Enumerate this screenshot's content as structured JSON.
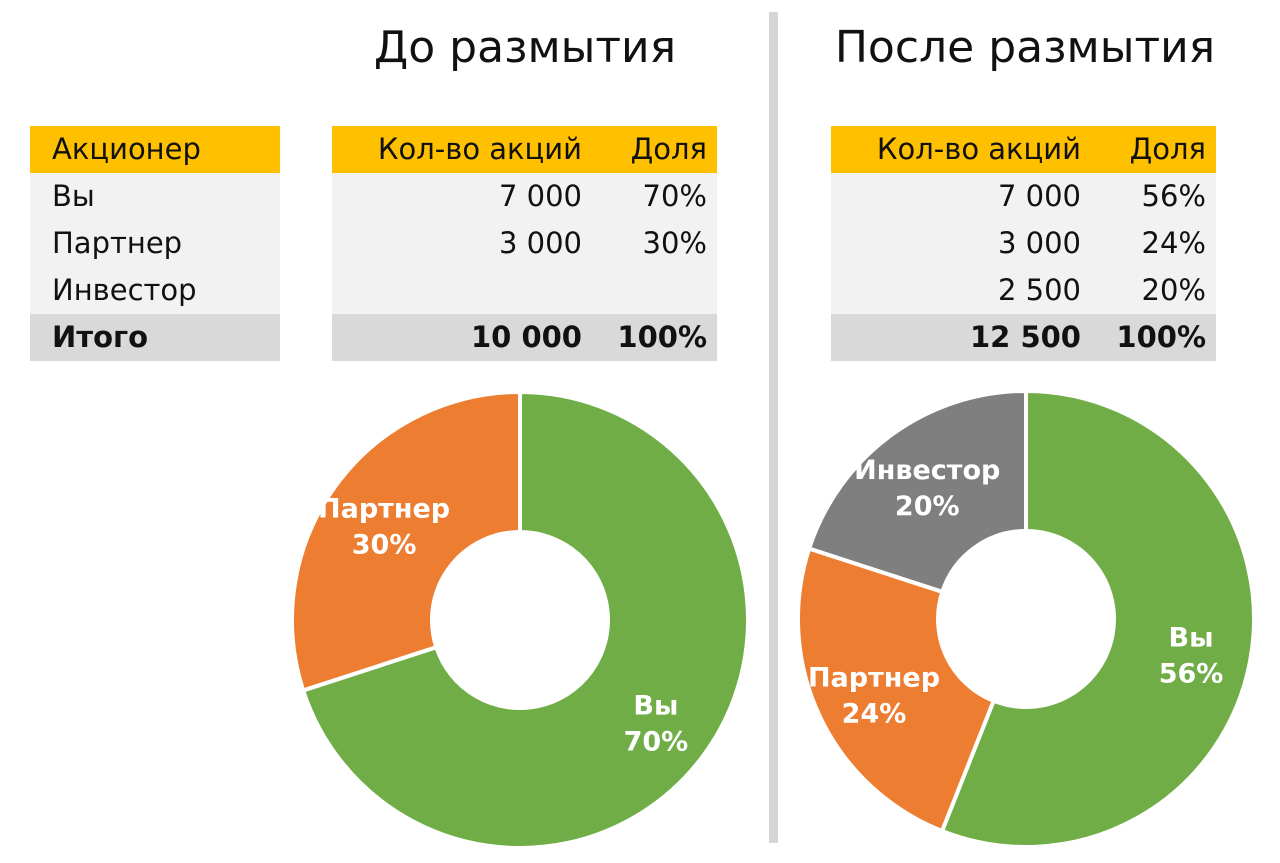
{
  "titles": {
    "before": "До размытия",
    "after": "После размытия"
  },
  "colors": {
    "header": "#ffc000",
    "body": "#f2f2f2",
    "total": "#d9d9d9",
    "you": "#70ad47",
    "partner": "#ed7d31",
    "investor": "#7f7f7f"
  },
  "holders_table": {
    "header": "Акционер",
    "rows": [
      "Вы",
      "Партнер",
      "Инвестор"
    ],
    "total": "Итого"
  },
  "before_table": {
    "headers": [
      "Кол-во акций",
      "Доля"
    ],
    "rows": [
      [
        "7 000",
        "70%"
      ],
      [
        "3 000",
        "30%"
      ],
      [
        "",
        ""
      ]
    ],
    "total": [
      "10 000",
      "100%"
    ]
  },
  "after_table": {
    "headers": [
      "Кол-во акций",
      "Доля"
    ],
    "rows": [
      [
        "7 000",
        "56%"
      ],
      [
        "3 000",
        "24%"
      ],
      [
        "2 500",
        "20%"
      ]
    ],
    "total": [
      "12 500",
      "100%"
    ]
  },
  "chart_data": [
    {
      "type": "pie",
      "title": "До размытия",
      "categories": [
        "Вы",
        "Партнер"
      ],
      "values": [
        70,
        30
      ],
      "labels": [
        "70%",
        "30%"
      ],
      "colors": [
        "#70ad47",
        "#ed7d31"
      ]
    },
    {
      "type": "pie",
      "title": "После размытия",
      "categories": [
        "Вы",
        "Партнер",
        "Инвестор"
      ],
      "values": [
        56,
        24,
        20
      ],
      "labels": [
        "56%",
        "24%",
        "20%"
      ],
      "colors": [
        "#70ad47",
        "#ed7d31",
        "#7f7f7f"
      ]
    }
  ]
}
